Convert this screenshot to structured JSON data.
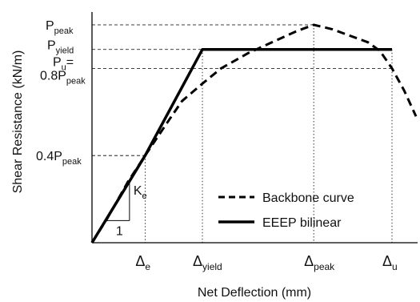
{
  "chart_data": {
    "type": "line",
    "title": "",
    "xlabel": "Net Deflection (mm)",
    "ylabel": "Shear Resistance (kN/m)",
    "y_axis_labels": [
      {
        "id": "p-peak",
        "main": "P",
        "sub": "peak",
        "value": 1.0
      },
      {
        "id": "p-yield",
        "main": "P",
        "sub": "yield",
        "value": 0.887
      },
      {
        "id": "p-u",
        "main": "P",
        "sub": "u",
        "suffix": "=",
        "value": 0.8
      },
      {
        "id": "point8-p-peak",
        "main": "0.8P",
        "sub": "peak",
        "value": 0.8
      },
      {
        "id": "point4-p-peak",
        "main": "0.4P",
        "sub": "peak",
        "value": 0.4
      }
    ],
    "x_axis_labels": [
      {
        "id": "delta-e",
        "main": "Δ",
        "sub": "e",
        "value": 0.177
      },
      {
        "id": "delta-yield",
        "main": "Δ",
        "sub": "yield",
        "value": 0.368
      },
      {
        "id": "delta-peak",
        "main": "Δ",
        "sub": "peak",
        "value": 0.739
      },
      {
        "id": "delta-u",
        "main": "Δ",
        "sub": "u",
        "value": 1.0
      }
    ],
    "xlim": [
      0,
      1.08
    ],
    "ylim": [
      0,
      1.08
    ],
    "grid": false,
    "legend_position": "center-right",
    "series": [
      {
        "name": "Backbone curve",
        "style": "dashed",
        "color": "#000000",
        "x": [
          0,
          0.05,
          0.12,
          0.177,
          0.25,
          0.3,
          0.368,
          0.43,
          0.52,
          0.6,
          0.68,
          0.739,
          0.8,
          0.86,
          0.92,
          0.96,
          1.0,
          1.04,
          1.08
        ],
        "y": [
          0,
          0.11,
          0.28,
          0.4,
          0.55,
          0.65,
          0.73,
          0.8,
          0.87,
          0.92,
          0.97,
          1.0,
          0.98,
          0.95,
          0.92,
          0.88,
          0.8,
          0.7,
          0.58
        ]
      },
      {
        "name": "EEEP bilinear",
        "style": "solid",
        "color": "#000000",
        "x": [
          0,
          0.177,
          0.368,
          1.0
        ],
        "y": [
          0,
          0.4,
          0.887,
          0.887
        ]
      }
    ],
    "annotations": [
      {
        "id": "stiffness-ke",
        "main": "K",
        "sub": "e"
      },
      {
        "id": "slope-run",
        "text": "1"
      }
    ]
  }
}
